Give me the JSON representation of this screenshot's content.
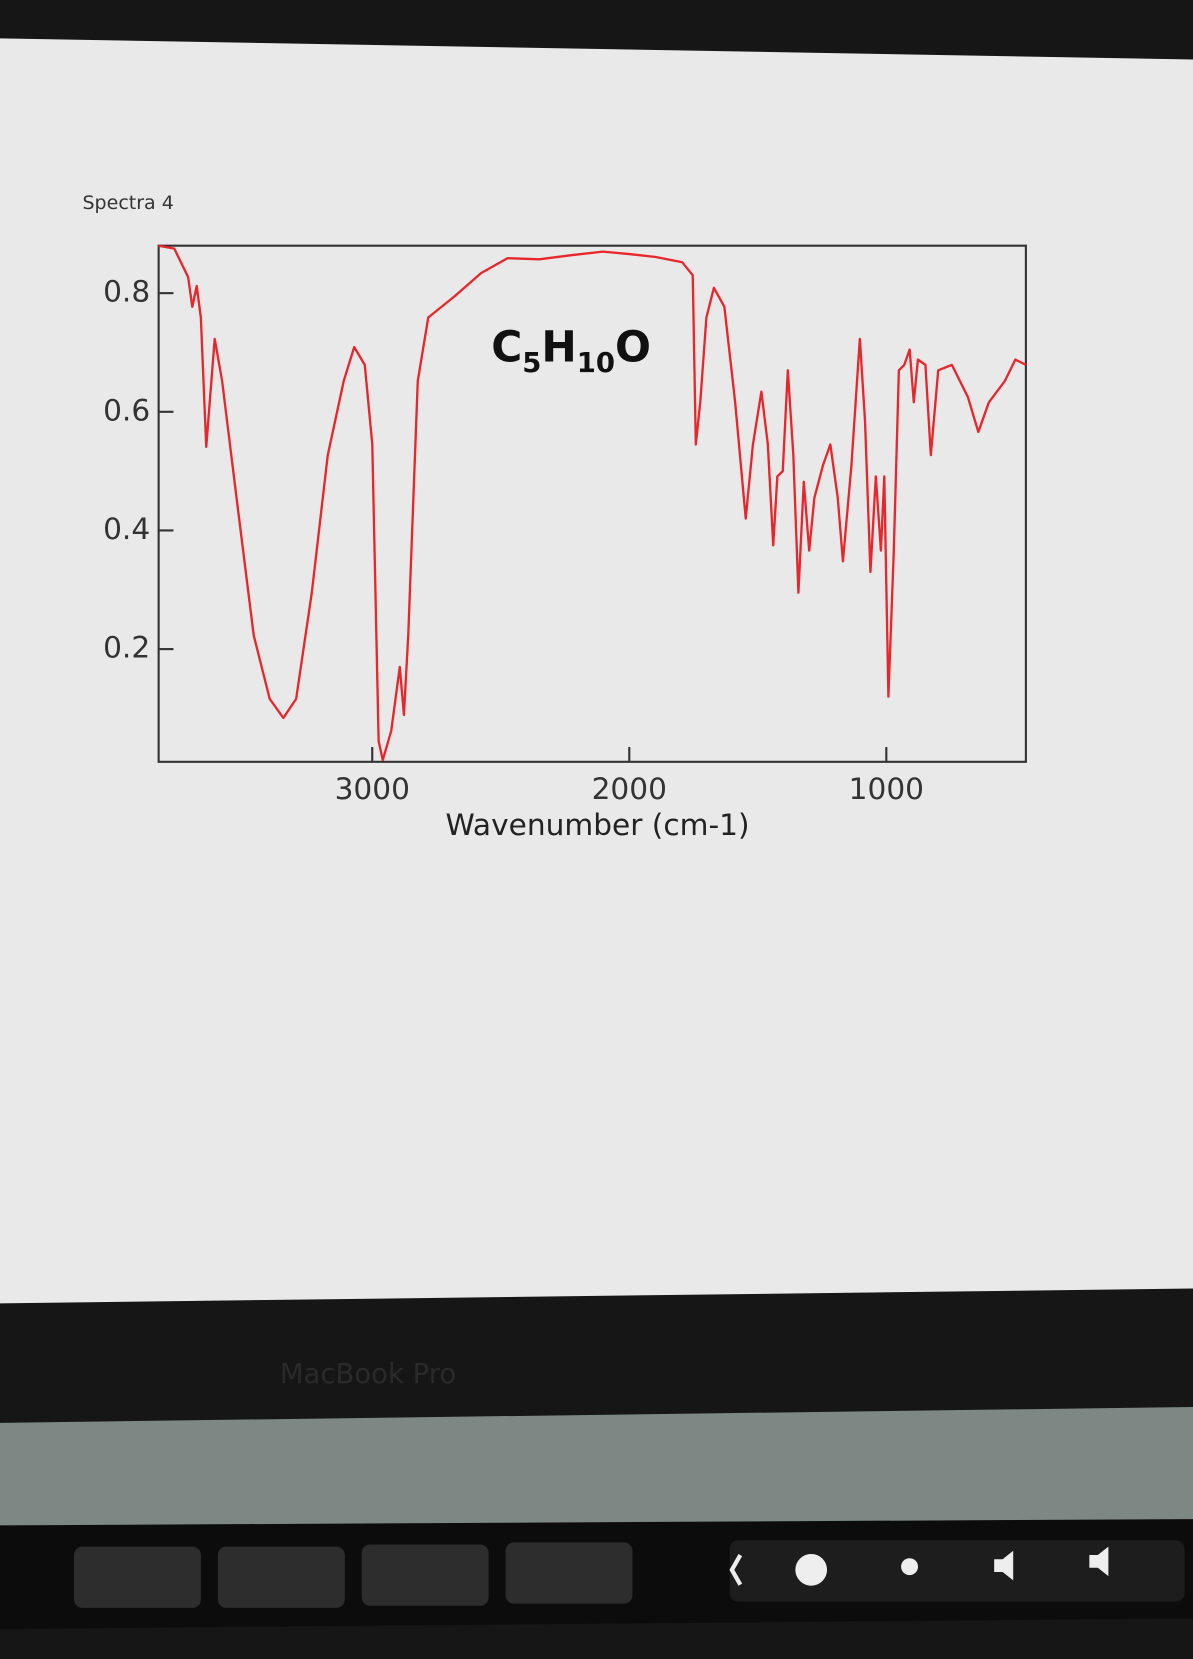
{
  "chart_data": {
    "type": "line",
    "title": "Spectra 4",
    "annotation": "C5H10O",
    "x_label": "Wavenumber (cm-1)",
    "color": "#e8262c",
    "x": [
      3831,
      3770,
      3716,
      3700,
      3683,
      3667,
      3646,
      3613,
      3584,
      3523,
      3461,
      3399,
      3346,
      3296,
      3235,
      3173,
      3111,
      3070,
      3029,
      3000,
      2975,
      2959,
      2926,
      2893,
      2877,
      2860,
      2823,
      2782,
      2679,
      2576,
      2473,
      2350,
      2226,
      2103,
      2000,
      1897,
      1794,
      1753,
      1741,
      1724,
      1700,
      1671,
      1630,
      1588,
      1547,
      1519,
      1486,
      1461,
      1440,
      1424,
      1403,
      1383,
      1362,
      1342,
      1321,
      1300,
      1280,
      1247,
      1218,
      1189,
      1169,
      1136,
      1103,
      1083,
      1062,
      1041,
      1021,
      1008,
      992,
      971,
      951,
      930,
      909,
      893,
      877,
      848,
      827,
      798,
      745,
      683,
      642,
      601,
      539,
      498,
      457
    ],
    "values": [
      0.88,
      0.875,
      0.827,
      0.777,
      0.812,
      0.759,
      0.541,
      0.723,
      0.652,
      0.437,
      0.223,
      0.116,
      0.084,
      0.116,
      0.295,
      0.527,
      0.652,
      0.709,
      0.679,
      0.545,
      0.045,
      0.013,
      0.062,
      0.17,
      0.089,
      0.223,
      0.652,
      0.759,
      0.795,
      0.834,
      0.859,
      0.857,
      0.864,
      0.87,
      0.866,
      0.861,
      0.852,
      0.83,
      0.545,
      0.616,
      0.759,
      0.809,
      0.777,
      0.616,
      0.42,
      0.545,
      0.634,
      0.545,
      0.375,
      0.491,
      0.5,
      0.67,
      0.527,
      0.295,
      0.482,
      0.366,
      0.455,
      0.509,
      0.545,
      0.455,
      0.348,
      0.509,
      0.723,
      0.584,
      0.33,
      0.491,
      0.366,
      0.491,
      0.12,
      0.366,
      0.67,
      0.679,
      0.705,
      0.616,
      0.688,
      0.679,
      0.527,
      0.67,
      0.679,
      0.625,
      0.566,
      0.616,
      0.652,
      0.688,
      0.679
    ],
    "xlim": [
      3831,
      457
    ],
    "xticks": [
      3000,
      2000,
      1000
    ],
    "ylim": [
      0.01,
      0.88
    ],
    "yticks": [
      0.2,
      0.4,
      0.6,
      0.8
    ]
  },
  "device_label": "MacBook Pro"
}
